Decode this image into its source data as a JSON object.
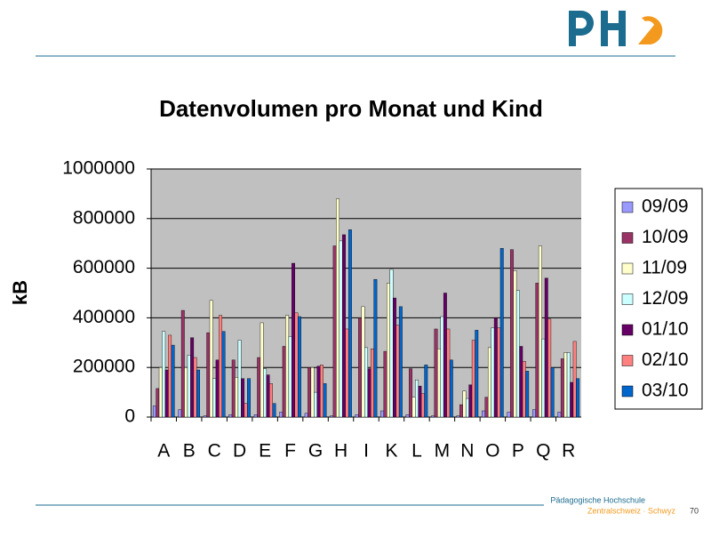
{
  "chart_data": {
    "type": "bar",
    "title": "Datenvolumen pro Monat und Kind",
    "y_label": "kB",
    "categories": [
      "A",
      "B",
      "C",
      "D",
      "E",
      "F",
      "G",
      "H",
      "I",
      "K",
      "L",
      "M",
      "N",
      "O",
      "P",
      "Q",
      "R"
    ],
    "series": [
      {
        "name": "09/09",
        "color": "#9999ff",
        "values": [
          45000,
          30000,
          5000,
          10000,
          10000,
          20000,
          15000,
          5000,
          10000,
          25000,
          10000,
          5000,
          5000,
          25000,
          20000,
          30000,
          20000
        ]
      },
      {
        "name": "10/09",
        "color": "#993366",
        "values": [
          115000,
          430000,
          340000,
          230000,
          240000,
          285000,
          200000,
          690000,
          400000,
          265000,
          195000,
          355000,
          50000,
          80000,
          675000,
          540000,
          235000
        ]
      },
      {
        "name": "11/09",
        "color": "#ffffcc",
        "values": [
          200000,
          200000,
          470000,
          160000,
          380000,
          410000,
          200000,
          880000,
          445000,
          540000,
          80000,
          275000,
          105000,
          280000,
          590000,
          690000,
          260000
        ]
      },
      {
        "name": "12/09",
        "color": "#ccffff",
        "values": [
          345000,
          250000,
          155000,
          310000,
          195000,
          325000,
          100000,
          710000,
          280000,
          595000,
          150000,
          405000,
          75000,
          360000,
          510000,
          315000,
          260000
        ]
      },
      {
        "name": "01/10",
        "color": "#660066",
        "values": [
          190000,
          320000,
          230000,
          155000,
          170000,
          620000,
          205000,
          735000,
          195000,
          480000,
          125000,
          500000,
          130000,
          400000,
          285000,
          560000,
          140000
        ]
      },
      {
        "name": "02/10",
        "color": "#ff8080",
        "values": [
          330000,
          240000,
          410000,
          55000,
          135000,
          420000,
          210000,
          355000,
          275000,
          370000,
          95000,
          355000,
          310000,
          360000,
          225000,
          395000,
          305000
        ]
      },
      {
        "name": "03/10",
        "color": "#0066cc",
        "values": [
          290000,
          190000,
          345000,
          155000,
          55000,
          405000,
          135000,
          755000,
          555000,
          445000,
          210000,
          230000,
          350000,
          680000,
          185000,
          200000,
          155000
        ]
      }
    ],
    "ylim": [
      0,
      1000000
    ],
    "yticks": [
      0,
      200000,
      400000,
      600000,
      800000,
      1000000
    ],
    "grid": true,
    "legend": "right",
    "plot_background": "#c0c0c0"
  },
  "footer": {
    "institution": "Pädagogische Hochschule",
    "location": "Zentralschweiz · Schwyz",
    "page": "70"
  }
}
